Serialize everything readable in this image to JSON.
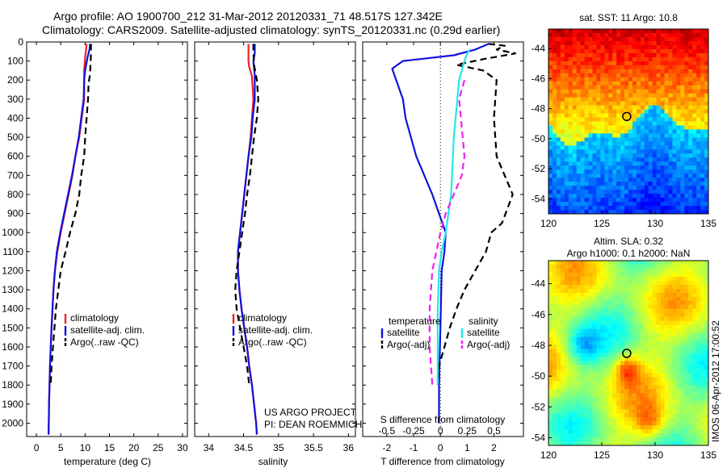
{
  "header": {
    "line1": "Argo profile: AO 1900700_212 31-Mar-2012 20120331_71 48.517S 127.342E",
    "line2": "Climatology: CARS2009. Satellite-adjusted climatology: synTS_20120331.nc (0.29d earlier)"
  },
  "credits": {
    "line1": "US ARGO PROJECT",
    "line2": "PI: DEAN ROEMMICH"
  },
  "timestamp": "IMOS 06-Apr-2012 17:00:52",
  "colors": {
    "red": "#ee2222",
    "blue": "#1111dd",
    "black": "#000000",
    "cyan": "#22e8e8",
    "magenta": "#ee22ee"
  },
  "chart_data": [
    {
      "type": "line",
      "xlabel": "temperature (deg C)",
      "ylabel": "",
      "xlim": [
        -2,
        31
      ],
      "ylim": [
        2070,
        0
      ],
      "xticks": [
        0,
        5,
        10,
        15,
        20,
        25,
        30
      ],
      "yticks": [
        0,
        100,
        200,
        300,
        400,
        500,
        600,
        700,
        800,
        900,
        1000,
        1100,
        1200,
        1300,
        1400,
        1500,
        1600,
        1700,
        1800,
        1900,
        2000
      ],
      "legend": [
        "climatology",
        "satellite-adj. clim.",
        "Argo(..raw -QC)"
      ],
      "series": [
        {
          "name": "climatology",
          "style": "red",
          "points": [
            [
              10.3,
              10
            ],
            [
              10.2,
              40
            ],
            [
              10.0,
              80
            ],
            [
              9.8,
              150
            ],
            [
              9.8,
              200
            ],
            [
              9.8,
              300
            ],
            [
              9.3,
              400
            ],
            [
              8.8,
              500
            ],
            [
              8.0,
              600
            ],
            [
              7.4,
              700
            ],
            [
              6.6,
              800
            ],
            [
              5.8,
              900
            ],
            [
              5.0,
              1000
            ],
            [
              4.3,
              1100
            ],
            [
              3.8,
              1200
            ],
            [
              3.5,
              1300
            ],
            [
              3.3,
              1400
            ],
            [
              3.1,
              1500
            ],
            [
              2.95,
              1600
            ],
            [
              2.8,
              1700
            ],
            [
              2.7,
              1800
            ],
            [
              2.6,
              1900
            ],
            [
              2.55,
              2000
            ],
            [
              2.5,
              2060
            ]
          ]
        },
        {
          "name": "satellite-adj. clim.",
          "style": "blue",
          "points": [
            [
              11.0,
              10
            ],
            [
              10.9,
              40
            ],
            [
              10.5,
              80
            ],
            [
              10.0,
              150
            ],
            [
              9.8,
              200
            ],
            [
              9.7,
              300
            ],
            [
              9.2,
              400
            ],
            [
              8.7,
              500
            ],
            [
              8.0,
              600
            ],
            [
              7.3,
              700
            ],
            [
              6.5,
              800
            ],
            [
              5.7,
              900
            ],
            [
              4.9,
              1000
            ],
            [
              4.2,
              1100
            ],
            [
              3.8,
              1200
            ],
            [
              3.5,
              1300
            ],
            [
              3.3,
              1400
            ],
            [
              3.1,
              1500
            ],
            [
              2.95,
              1600
            ],
            [
              2.8,
              1700
            ],
            [
              2.7,
              1800
            ],
            [
              2.6,
              1900
            ],
            [
              2.55,
              2000
            ],
            [
              2.5,
              2060
            ]
          ]
        },
        {
          "name": "Argo(..raw -QC)",
          "style": "black-dash",
          "points": [
            [
              11.2,
              10
            ],
            [
              11.2,
              60
            ],
            [
              11.1,
              120
            ],
            [
              11.0,
              170
            ],
            [
              10.7,
              220
            ],
            [
              10.6,
              300
            ],
            [
              10.3,
              400
            ],
            [
              10.0,
              500
            ],
            [
              9.8,
              600
            ],
            [
              9.2,
              700
            ],
            [
              8.8,
              800
            ],
            [
              8.0,
              900
            ],
            [
              6.9,
              1000
            ],
            [
              6.0,
              1100
            ],
            [
              5.0,
              1200
            ],
            [
              4.5,
              1300
            ],
            [
              4.0,
              1400
            ],
            [
              3.7,
              1500
            ],
            [
              3.4,
              1600
            ],
            [
              3.1,
              1700
            ],
            [
              2.95,
              1800
            ]
          ]
        }
      ]
    },
    {
      "type": "line",
      "xlabel": "salinity",
      "ylabel": "",
      "xlim": [
        33.8,
        36.1
      ],
      "ylim": [
        2070,
        0
      ],
      "xticks": [
        34,
        34.5,
        35,
        35.5,
        36
      ],
      "yticks": [
        0,
        100,
        200,
        300,
        400,
        500,
        600,
        700,
        800,
        900,
        1000,
        1100,
        1200,
        1300,
        1400,
        1500,
        1600,
        1700,
        1800,
        1900,
        2000
      ],
      "legend": [
        "climatology",
        "satellite-adj. clim.",
        "Argo(..raw -QC)"
      ],
      "series": [
        {
          "name": "climatology",
          "style": "red",
          "points": [
            [
              34.57,
              10
            ],
            [
              34.57,
              60
            ],
            [
              34.57,
              100
            ],
            [
              34.58,
              130
            ],
            [
              34.62,
              180
            ],
            [
              34.64,
              300
            ],
            [
              34.62,
              400
            ],
            [
              34.6,
              500
            ],
            [
              34.57,
              600
            ],
            [
              34.54,
              700
            ],
            [
              34.51,
              800
            ],
            [
              34.48,
              900
            ],
            [
              34.45,
              1000
            ],
            [
              34.42,
              1100
            ],
            [
              34.42,
              1200
            ],
            [
              34.44,
              1300
            ],
            [
              34.47,
              1400
            ],
            [
              34.51,
              1500
            ],
            [
              34.55,
              1600
            ],
            [
              34.58,
              1700
            ],
            [
              34.62,
              1800
            ],
            [
              34.65,
              1900
            ],
            [
              34.68,
              2000
            ],
            [
              34.69,
              2060
            ]
          ]
        },
        {
          "name": "satellite-adj. clim.",
          "style": "blue",
          "points": [
            [
              34.66,
              10
            ],
            [
              34.66,
              60
            ],
            [
              34.64,
              100
            ],
            [
              34.66,
              180
            ],
            [
              34.66,
              300
            ],
            [
              34.63,
              400
            ],
            [
              34.61,
              500
            ],
            [
              34.57,
              600
            ],
            [
              34.54,
              700
            ],
            [
              34.51,
              800
            ],
            [
              34.48,
              900
            ],
            [
              34.45,
              1000
            ],
            [
              34.42,
              1100
            ],
            [
              34.42,
              1200
            ],
            [
              34.44,
              1300
            ],
            [
              34.47,
              1400
            ],
            [
              34.51,
              1500
            ],
            [
              34.55,
              1600
            ],
            [
              34.58,
              1700
            ],
            [
              34.62,
              1800
            ],
            [
              34.65,
              1900
            ],
            [
              34.68,
              2000
            ],
            [
              34.69,
              2060
            ]
          ]
        },
        {
          "name": "Argo(..raw -QC)",
          "style": "black-dash",
          "points": [
            [
              34.64,
              10
            ],
            [
              34.64,
              60
            ],
            [
              34.65,
              120
            ],
            [
              34.69,
              200
            ],
            [
              34.71,
              300
            ],
            [
              34.69,
              400
            ],
            [
              34.65,
              500
            ],
            [
              34.62,
              600
            ],
            [
              34.59,
              700
            ],
            [
              34.55,
              800
            ],
            [
              34.52,
              900
            ],
            [
              34.48,
              1000
            ],
            [
              34.44,
              1100
            ],
            [
              34.4,
              1200
            ],
            [
              34.38,
              1300
            ],
            [
              34.4,
              1400
            ],
            [
              34.45,
              1500
            ],
            [
              34.5,
              1600
            ],
            [
              34.55,
              1700
            ],
            [
              34.58,
              1800
            ]
          ]
        }
      ]
    },
    {
      "type": "line",
      "xlabel": "T difference from climatology",
      "xlabel_top": "S difference from climatology",
      "ylabel": "",
      "xlim": [
        -2.9,
        3.1
      ],
      "ylim": [
        2070,
        0
      ],
      "xticks": [
        -2,
        -1,
        0,
        1,
        2
      ],
      "xtick_labels": [
        "-2",
        "-1",
        "0",
        "1",
        "2"
      ],
      "s_xticks": [
        -0.5,
        -0.25,
        0,
        0.25,
        0.5
      ],
      "s_xtick_labels": [
        "-0.5",
        "-0.25",
        "0",
        "0.25",
        "0.5"
      ],
      "yticks": [
        0,
        100,
        200,
        300,
        400,
        500,
        600,
        700,
        800,
        900,
        1000,
        1100,
        1200,
        1300,
        1400,
        1500,
        1600,
        1700,
        1800,
        1900,
        2000
      ],
      "legend_headers": [
        "temperature",
        "salinity"
      ],
      "legend": [
        "satellite",
        "Argo(-adj)",
        "satellite",
        "Argo(-adj)"
      ],
      "series": [
        {
          "name": "satellite",
          "style": "blue",
          "points": [
            [
              1.8,
              10
            ],
            [
              1.3,
              40
            ],
            [
              0.5,
              70
            ],
            [
              -1.4,
              100
            ],
            [
              -1.8,
              140
            ],
            [
              -1.7,
              180
            ],
            [
              -1.4,
              300
            ],
            [
              -1.3,
              400
            ],
            [
              -0.9,
              600
            ],
            [
              -0.3,
              800
            ],
            [
              0.2,
              1000
            ],
            [
              0.15,
              1100
            ],
            [
              0.05,
              1200
            ],
            [
              0.0,
              1500
            ],
            [
              -0.05,
              1800
            ],
            [
              -0.05,
              2000
            ]
          ]
        },
        {
          "name": "Argo(-adj)",
          "style": "black-dash",
          "points": [
            [
              1.8,
              10
            ],
            [
              2.4,
              20
            ],
            [
              2.1,
              40
            ],
            [
              2.8,
              60
            ],
            [
              1.6,
              90
            ],
            [
              0.6,
              120
            ],
            [
              1.6,
              150
            ],
            [
              2.1,
              200
            ],
            [
              2.0,
              400
            ],
            [
              2.1,
              600
            ],
            [
              2.7,
              800
            ],
            [
              2.3,
              950
            ],
            [
              1.9,
              1000
            ],
            [
              1.7,
              1100
            ],
            [
              1.3,
              1200
            ],
            [
              0.9,
              1300
            ],
            [
              0.6,
              1400
            ],
            [
              0.35,
              1500
            ],
            [
              0.15,
              1600
            ],
            [
              -0.05,
              1700
            ],
            [
              -0.1,
              1800
            ]
          ]
        },
        {
          "name": "satellite",
          "style": "cyan",
          "points": [
            [
              1.1,
              40
            ],
            [
              1.0,
              60
            ],
            [
              0.9,
              100
            ],
            [
              0.7,
              200
            ],
            [
              0.5,
              500
            ],
            [
              0.4,
              800
            ],
            [
              0.2,
              1000
            ],
            [
              0.05,
              1100
            ],
            [
              -0.05,
              1200
            ],
            [
              -0.1,
              1400
            ],
            [
              -0.1,
              1600
            ],
            [
              -0.1,
              1800
            ]
          ]
        },
        {
          "name": "Argo(-adj)",
          "style": "magenta-dash",
          "points": [
            [
              0.9,
              200
            ],
            [
              0.7,
              300
            ],
            [
              0.8,
              450
            ],
            [
              0.9,
              600
            ],
            [
              0.8,
              700
            ],
            [
              0.5,
              800
            ],
            [
              0.2,
              900
            ],
            [
              0.0,
              1000
            ],
            [
              -0.3,
              1200
            ],
            [
              -0.4,
              1400
            ],
            [
              -0.4,
              1600
            ],
            [
              -0.3,
              1800
            ]
          ]
        }
      ]
    },
    {
      "type": "heatmap",
      "title": "sat. SST: 11  Argo: 10.8",
      "xlim": [
        120,
        135
      ],
      "ylim": [
        -55,
        -42.7
      ],
      "xticks": [
        120,
        125,
        130,
        135
      ],
      "yticks": [
        -44,
        -46,
        -48,
        -50,
        -52,
        -54
      ],
      "marker": [
        127.34,
        -48.52
      ],
      "colormap": "jet"
    },
    {
      "type": "heatmap",
      "title": "Altim. SLA: 0.32",
      "subtitle": "Argo h1000: 0.1 h2000: NaN",
      "xlim": [
        120,
        135
      ],
      "ylim": [
        -54.5,
        -42.5
      ],
      "xticks": [
        120,
        125,
        130,
        135
      ],
      "yticks": [
        -44,
        -46,
        -48,
        -50,
        -52,
        -54
      ],
      "marker": [
        127.34,
        -48.52
      ],
      "colormap": "jet"
    }
  ]
}
